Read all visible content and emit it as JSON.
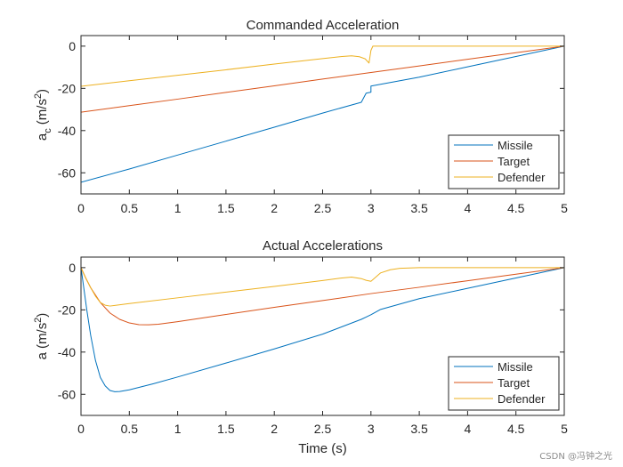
{
  "chart_data": [
    {
      "type": "line",
      "title": "Commanded Acceleration",
      "xlabel": "",
      "ylabel_main": "a",
      "ylabel_sub": "c",
      "ylabel_units": "(m/s",
      "ylabel_sup": "2",
      "ylabel_close": ")",
      "xlim": [
        0,
        5
      ],
      "ylim": [
        -70,
        5
      ],
      "xticks": [
        "0",
        "0.5",
        "1",
        "1.5",
        "2",
        "2.5",
        "3",
        "3.5",
        "4",
        "4.5",
        "5"
      ],
      "yticks": [
        "-60",
        "-40",
        "-20",
        "0"
      ],
      "ytick_values": [
        -60,
        -40,
        -20,
        0
      ],
      "grid": false,
      "legend_position": "bottom-right",
      "series": [
        {
          "name": "Missile",
          "color": "#0072BD",
          "points": [
            [
              0,
              -64.5
            ],
            [
              0.5,
              -58.2
            ],
            [
              1,
              -51.6
            ],
            [
              1.5,
              -45.0
            ],
            [
              2,
              -38.4
            ],
            [
              2.5,
              -31.7
            ],
            [
              2.9,
              -26.6
            ],
            [
              2.95,
              -22.3
            ],
            [
              3.0,
              -21.8
            ],
            [
              3.0,
              -18.9
            ],
            [
              3.5,
              -14.7
            ],
            [
              4,
              -9.8
            ],
            [
              4.5,
              -4.9
            ],
            [
              5,
              0
            ]
          ]
        },
        {
          "name": "Target",
          "color": "#D95319",
          "points": [
            [
              0,
              -31.3
            ],
            [
              0.5,
              -28.2
            ],
            [
              1,
              -25.1
            ],
            [
              1.5,
              -21.9
            ],
            [
              2,
              -18.8
            ],
            [
              2.5,
              -15.6
            ],
            [
              3,
              -12.5
            ],
            [
              3.5,
              -9.4
            ],
            [
              4,
              -6.2
            ],
            [
              4.5,
              -3.1
            ],
            [
              5,
              0
            ]
          ]
        },
        {
          "name": "Defender",
          "color": "#EDB120",
          "points": [
            [
              0,
              -19
            ],
            [
              0.5,
              -16.4
            ],
            [
              1,
              -13.8
            ],
            [
              1.5,
              -11.2
            ],
            [
              2,
              -8.5
            ],
            [
              2.5,
              -5.9
            ],
            [
              2.7,
              -4.9
            ],
            [
              2.8,
              -4.6
            ],
            [
              2.88,
              -5.0
            ],
            [
              2.94,
              -6.0
            ],
            [
              2.98,
              -8.0
            ],
            [
              3.0,
              -2.0
            ],
            [
              3.02,
              0
            ],
            [
              5,
              0
            ]
          ]
        }
      ]
    },
    {
      "type": "line",
      "title": "Actual Accelerations",
      "xlabel": "Time (s)",
      "ylabel_main": "a",
      "ylabel_sub": "",
      "ylabel_units": "(m/s",
      "ylabel_sup": "2",
      "ylabel_close": ")",
      "xlim": [
        0,
        5
      ],
      "ylim": [
        -70,
        5
      ],
      "xticks": [
        "0",
        "0.5",
        "1",
        "1.5",
        "2",
        "2.5",
        "3",
        "3.5",
        "4",
        "4.5",
        "5"
      ],
      "yticks": [
        "-60",
        "-40",
        "-20",
        "0"
      ],
      "ytick_values": [
        -60,
        -40,
        -20,
        0
      ],
      "grid": false,
      "legend_position": "bottom-right",
      "series": [
        {
          "name": "Missile",
          "color": "#0072BD",
          "points": [
            [
              0,
              0
            ],
            [
              0.03,
              -10
            ],
            [
              0.06,
              -20
            ],
            [
              0.1,
              -32
            ],
            [
              0.15,
              -44
            ],
            [
              0.2,
              -52
            ],
            [
              0.25,
              -56
            ],
            [
              0.3,
              -58.2
            ],
            [
              0.35,
              -58.8
            ],
            [
              0.4,
              -58.7
            ],
            [
              0.5,
              -57.9
            ],
            [
              0.75,
              -55.0
            ],
            [
              1,
              -51.8
            ],
            [
              1.5,
              -45.2
            ],
            [
              2,
              -38.5
            ],
            [
              2.5,
              -31.5
            ],
            [
              2.9,
              -24.5
            ],
            [
              2.95,
              -23.4
            ],
            [
              3.0,
              -22.3
            ],
            [
              3.1,
              -19.8
            ],
            [
              3.5,
              -14.7
            ],
            [
              4,
              -9.8
            ],
            [
              4.5,
              -4.9
            ],
            [
              5,
              0
            ]
          ]
        },
        {
          "name": "Target",
          "color": "#D95319",
          "points": [
            [
              0,
              0
            ],
            [
              0.05,
              -5
            ],
            [
              0.1,
              -9.5
            ],
            [
              0.2,
              -16.5
            ],
            [
              0.3,
              -21.5
            ],
            [
              0.4,
              -24.5
            ],
            [
              0.5,
              -26.2
            ],
            [
              0.6,
              -27
            ],
            [
              0.7,
              -27.1
            ],
            [
              0.8,
              -26.8
            ],
            [
              1,
              -25.6
            ],
            [
              1.5,
              -22.2
            ],
            [
              2,
              -18.8
            ],
            [
              2.5,
              -15.6
            ],
            [
              3,
              -12.3
            ],
            [
              3.5,
              -9.3
            ],
            [
              4,
              -6.2
            ],
            [
              4.5,
              -3.1
            ],
            [
              5,
              0
            ]
          ]
        },
        {
          "name": "Defender",
          "color": "#EDB120",
          "points": [
            [
              0,
              0
            ],
            [
              0.05,
              -5
            ],
            [
              0.1,
              -9.5
            ],
            [
              0.15,
              -13.5
            ],
            [
              0.2,
              -16.5
            ],
            [
              0.25,
              -17.8
            ],
            [
              0.3,
              -18.2
            ],
            [
              0.5,
              -17.0
            ],
            [
              1,
              -14.3
            ],
            [
              1.5,
              -11.6
            ],
            [
              2,
              -8.9
            ],
            [
              2.5,
              -6.1
            ],
            [
              2.7,
              -4.9
            ],
            [
              2.8,
              -4.5
            ],
            [
              2.9,
              -5.2
            ],
            [
              2.95,
              -6.0
            ],
            [
              3.0,
              -6.5
            ],
            [
              3.05,
              -4.5
            ],
            [
              3.1,
              -2.5
            ],
            [
              3.2,
              -1.0
            ],
            [
              3.3,
              -0.3
            ],
            [
              3.5,
              0
            ],
            [
              5,
              0
            ]
          ]
        }
      ]
    }
  ],
  "watermark": "CSDN @冯钟之光"
}
